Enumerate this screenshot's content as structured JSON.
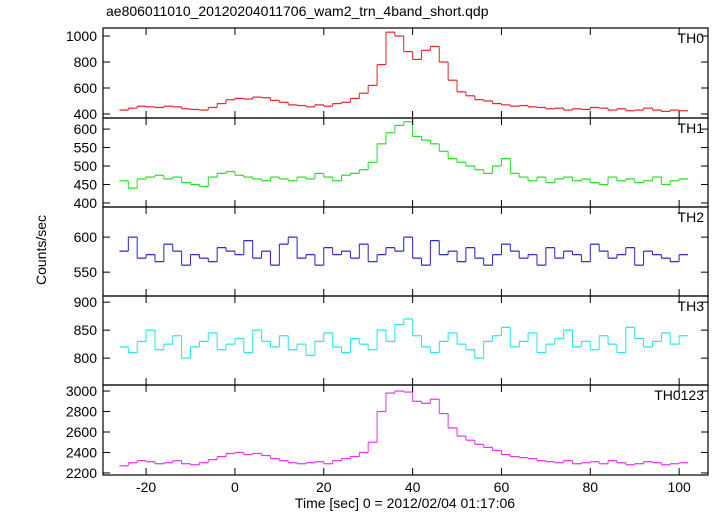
{
  "title": "ae806011010_20120204011706_wam2_trn_4band_short.qdp",
  "xlabel": "Time [sec] 0 = 2012/02/04 01:17:06",
  "ylabel": "Counts/sec",
  "chart_data": [
    {
      "type": "line",
      "label": "TH0",
      "color": "#e8242b",
      "x": [
        -25,
        -23,
        -21,
        -19,
        -17,
        -15,
        -13,
        -11,
        -9,
        -7,
        -5,
        -3,
        -1,
        1,
        3,
        5,
        7,
        9,
        11,
        13,
        15,
        17,
        19,
        21,
        23,
        25,
        27,
        29,
        31,
        33,
        35,
        37,
        39,
        41,
        43,
        45,
        47,
        49,
        51,
        53,
        55,
        57,
        59,
        61,
        63,
        65,
        67,
        69,
        71,
        73,
        75,
        77,
        79,
        81,
        83,
        85,
        87,
        89,
        91,
        93,
        95,
        97,
        99,
        101
      ],
      "values": [
        430,
        445,
        460,
        455,
        450,
        460,
        455,
        440,
        435,
        430,
        450,
        480,
        510,
        520,
        515,
        530,
        525,
        505,
        490,
        470,
        465,
        455,
        470,
        460,
        480,
        490,
        520,
        560,
        620,
        780,
        1030,
        1000,
        880,
        820,
        890,
        920,
        800,
        660,
        570,
        540,
        510,
        500,
        480,
        470,
        460,
        465,
        455,
        450,
        440,
        445,
        430,
        440,
        435,
        450,
        445,
        430,
        440,
        425,
        430,
        445,
        430,
        420,
        430,
        425
      ],
      "xlim": [
        -29.7,
        106.5
      ],
      "xticks": [
        -20,
        0,
        20,
        40,
        60,
        80,
        100
      ],
      "ylim": [
        369,
        1062
      ],
      "yticks": [
        400,
        600,
        800,
        1000
      ]
    },
    {
      "type": "line",
      "label": "TH1",
      "color": "#22e022",
      "x": [
        -25,
        -23,
        -21,
        -19,
        -17,
        -15,
        -13,
        -11,
        -9,
        -7,
        -5,
        -3,
        -1,
        1,
        3,
        5,
        7,
        9,
        11,
        13,
        15,
        17,
        19,
        21,
        23,
        25,
        27,
        29,
        31,
        33,
        35,
        37,
        39,
        41,
        43,
        45,
        47,
        49,
        51,
        53,
        55,
        57,
        59,
        61,
        63,
        65,
        67,
        69,
        71,
        73,
        75,
        77,
        79,
        81,
        83,
        85,
        87,
        89,
        91,
        93,
        95,
        97,
        99,
        101
      ],
      "values": [
        460,
        440,
        465,
        470,
        475,
        465,
        470,
        455,
        450,
        445,
        470,
        480,
        485,
        475,
        470,
        465,
        460,
        470,
        465,
        460,
        470,
        465,
        480,
        470,
        460,
        475,
        480,
        490,
        510,
        560,
        590,
        610,
        620,
        580,
        570,
        560,
        540,
        520,
        510,
        500,
        490,
        480,
        500,
        520,
        480,
        470,
        460,
        470,
        455,
        465,
        470,
        460,
        465,
        455,
        450,
        470,
        460,
        465,
        455,
        460,
        470,
        450,
        460,
        465
      ],
      "xlim": [
        -29.7,
        106.5
      ],
      "xticks": [
        -20,
        0,
        20,
        40,
        60,
        80,
        100
      ],
      "ylim": [
        389,
        630
      ],
      "yticks": [
        400,
        450,
        500,
        550,
        600
      ]
    },
    {
      "type": "line",
      "label": "TH2",
      "color": "#2424c8",
      "x": [
        -25,
        -23,
        -21,
        -19,
        -17,
        -15,
        -13,
        -11,
        -9,
        -7,
        -5,
        -3,
        -1,
        1,
        3,
        5,
        7,
        9,
        11,
        13,
        15,
        17,
        19,
        21,
        23,
        25,
        27,
        29,
        31,
        33,
        35,
        37,
        39,
        41,
        43,
        45,
        47,
        49,
        51,
        53,
        55,
        57,
        59,
        61,
        63,
        65,
        67,
        69,
        71,
        73,
        75,
        77,
        79,
        81,
        83,
        85,
        87,
        89,
        91,
        93,
        95,
        97,
        99,
        101
      ],
      "values": [
        580,
        600,
        570,
        575,
        565,
        590,
        580,
        560,
        575,
        570,
        565,
        585,
        580,
        575,
        595,
        570,
        580,
        560,
        590,
        600,
        570,
        575,
        560,
        585,
        575,
        580,
        570,
        590,
        565,
        575,
        585,
        580,
        600,
        570,
        560,
        595,
        575,
        580,
        565,
        585,
        570,
        560,
        575,
        590,
        580,
        570,
        575,
        560,
        585,
        570,
        580,
        575,
        565,
        590,
        580,
        570,
        575,
        585,
        560,
        580,
        575,
        570,
        565,
        575
      ],
      "xlim": [
        -29.7,
        106.5
      ],
      "xticks": [
        -20,
        0,
        20,
        40,
        60,
        80,
        100
      ],
      "ylim": [
        516,
        643
      ],
      "yticks": [
        550,
        600
      ]
    },
    {
      "type": "line",
      "label": "TH3",
      "color": "#22e6e6",
      "x": [
        -25,
        -23,
        -21,
        -19,
        -17,
        -15,
        -13,
        -11,
        -9,
        -7,
        -5,
        -3,
        -1,
        1,
        3,
        5,
        7,
        9,
        11,
        13,
        15,
        17,
        19,
        21,
        23,
        25,
        27,
        29,
        31,
        33,
        35,
        37,
        39,
        41,
        43,
        45,
        47,
        49,
        51,
        53,
        55,
        57,
        59,
        61,
        63,
        65,
        67,
        69,
        71,
        73,
        75,
        77,
        79,
        81,
        83,
        85,
        87,
        89,
        91,
        93,
        95,
        97,
        99,
        101
      ],
      "values": [
        820,
        810,
        830,
        850,
        815,
        825,
        840,
        800,
        820,
        830,
        845,
        815,
        825,
        835,
        810,
        850,
        830,
        820,
        840,
        815,
        825,
        805,
        830,
        845,
        820,
        810,
        835,
        825,
        815,
        850,
        830,
        860,
        870,
        840,
        820,
        810,
        830,
        845,
        825,
        815,
        800,
        830,
        840,
        855,
        820,
        830,
        845,
        810,
        825,
        835,
        850,
        820,
        830,
        815,
        840,
        825,
        810,
        855,
        835,
        820,
        830,
        845,
        825,
        840
      ],
      "xlim": [
        -29.7,
        106.5
      ],
      "xticks": [
        -20,
        0,
        20,
        40,
        60,
        80,
        100
      ],
      "ylim": [
        752,
        911
      ],
      "yticks": [
        800,
        850,
        900
      ]
    },
    {
      "type": "line",
      "label": "TH0123",
      "color": "#e632e6",
      "x": [
        -25,
        -23,
        -21,
        -19,
        -17,
        -15,
        -13,
        -11,
        -9,
        -7,
        -5,
        -3,
        -1,
        1,
        3,
        5,
        7,
        9,
        11,
        13,
        15,
        17,
        19,
        21,
        23,
        25,
        27,
        29,
        31,
        33,
        35,
        37,
        39,
        41,
        43,
        45,
        47,
        49,
        51,
        53,
        55,
        57,
        59,
        61,
        63,
        65,
        67,
        69,
        71,
        73,
        75,
        77,
        79,
        81,
        83,
        85,
        87,
        89,
        91,
        93,
        95,
        97,
        99,
        101
      ],
      "values": [
        2270,
        2300,
        2320,
        2310,
        2290,
        2300,
        2320,
        2290,
        2280,
        2300,
        2330,
        2360,
        2390,
        2400,
        2380,
        2390,
        2370,
        2340,
        2320,
        2300,
        2290,
        2300,
        2310,
        2290,
        2320,
        2340,
        2360,
        2400,
        2500,
        2800,
        2980,
        3000,
        2990,
        2900,
        2880,
        2920,
        2780,
        2640,
        2560,
        2520,
        2480,
        2450,
        2420,
        2380,
        2360,
        2350,
        2340,
        2320,
        2310,
        2300,
        2320,
        2290,
        2300,
        2310,
        2290,
        2320,
        2300,
        2280,
        2290,
        2310,
        2300,
        2280,
        2290,
        2300
      ],
      "xlim": [
        -29.7,
        106.5
      ],
      "xticks": [
        -20,
        0,
        20,
        40,
        60,
        80,
        100
      ],
      "ylim": [
        2180,
        3059
      ],
      "yticks": [
        2200,
        2400,
        2600,
        2800,
        3000
      ]
    }
  ]
}
